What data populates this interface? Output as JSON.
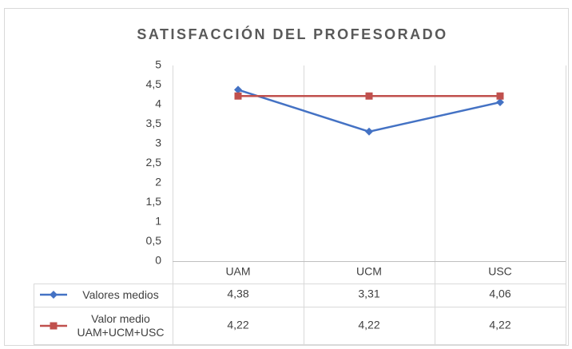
{
  "chart_data": {
    "type": "line",
    "title": "SATISFACCIÓN DEL PROFESORADO",
    "categories": [
      "UAM",
      "UCM",
      "USC"
    ],
    "series": [
      {
        "name": "Valores medios",
        "color": "#4472c4",
        "marker": "diamond",
        "values": [
          4.38,
          3.31,
          4.06
        ],
        "value_labels": [
          "4,38",
          "3,31",
          "4,06"
        ]
      },
      {
        "name": "Valor medio UAM+UCM+USC",
        "color": "#c0504d",
        "marker": "square",
        "values": [
          4.22,
          4.22,
          4.22
        ],
        "value_labels": [
          "4,22",
          "4,22",
          "4,22"
        ]
      }
    ],
    "ylim": [
      0,
      5
    ],
    "yticks": [
      0,
      {
        "value": 0.5,
        "label": "0,5"
      },
      1,
      {
        "value": 1.5,
        "label": "1,5"
      },
      2,
      {
        "value": 2.5,
        "label": "2,5"
      },
      3,
      {
        "value": 3.5,
        "label": "3,5"
      },
      4,
      {
        "value": 4.5,
        "label": "4,5"
      },
      5
    ],
    "legend": "table"
  }
}
